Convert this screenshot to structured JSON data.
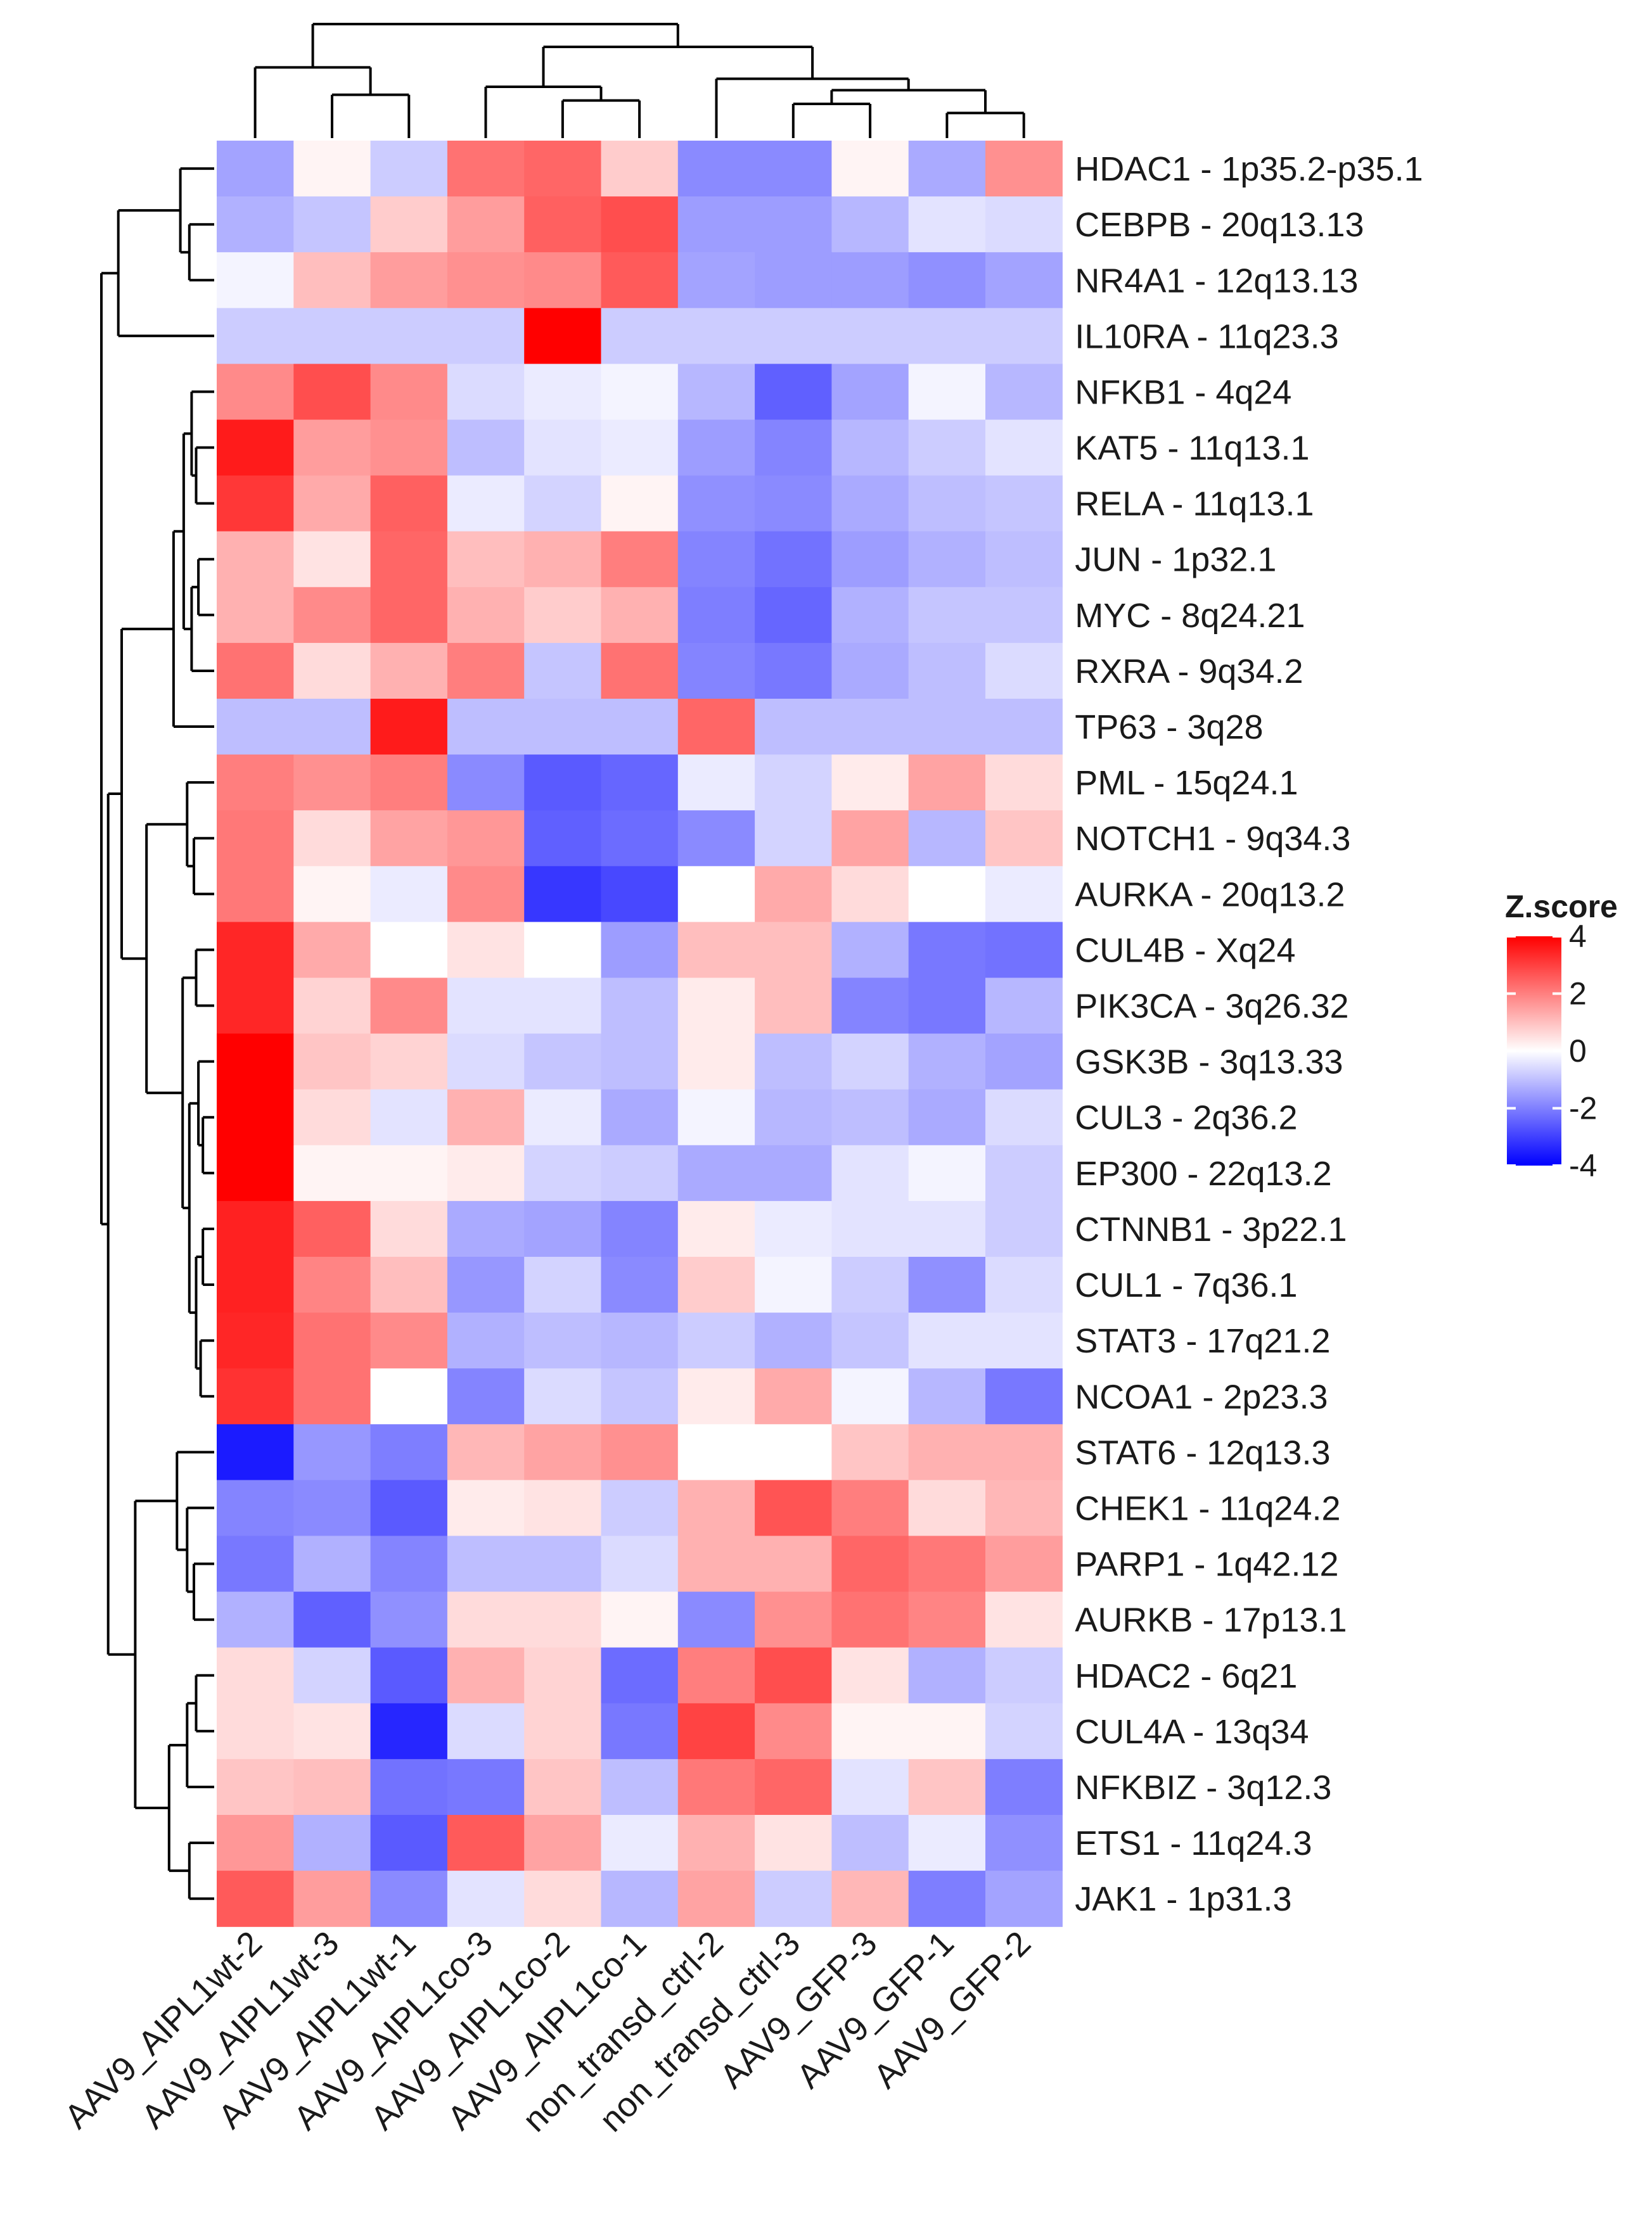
{
  "chart_data": {
    "type": "heatmap",
    "title": "",
    "legend": {
      "title": "Z.score",
      "ticks": [
        4,
        2,
        0,
        -2,
        -4
      ],
      "range": [
        -4,
        4
      ],
      "colors": {
        "low": "#0000ff",
        "mid": "#ffffff",
        "high": "#ff0000"
      },
      "placement": "right"
    },
    "columns": [
      "AAV9_AIPL1wt-2",
      "AAV9_AIPL1wt-3",
      "AAV9_AIPL1wt-1",
      "AAV9_AIPL1co-3",
      "AAV9_AIPL1co-2",
      "AAV9_AIPL1co-1",
      "non_transd_ctrl-2",
      "non_transd_ctrl-3",
      "AAV9_GFP-3",
      "AAV9_GFP-1",
      "AAV9_GFP-2"
    ],
    "rows": [
      "HDAC1 - 1p35.2-p35.1",
      "CEBPB - 20q13.13",
      "NR4A1 - 12q13.13",
      "IL10RA - 11q23.3",
      "NFKB1 - 4q24",
      "KAT5 - 11q13.1",
      "RELA - 11q13.1",
      "JUN - 1p32.1",
      "MYC - 8q24.21",
      "RXRA - 9q34.2",
      "TP63 - 3q28",
      "PML - 15q24.1",
      "NOTCH1 - 9q34.3",
      "AURKA - 20q13.2",
      "CUL4B - Xq24",
      "PIK3CA - 3q26.32",
      "GSK3B - 3q13.33",
      "CUL3 - 2q36.2",
      "EP300 - 22q13.2",
      "CTNNB1 - 3p22.1",
      "CUL1 - 7q36.1",
      "STAT3 - 17q21.2",
      "NCOA1 - 2p23.3",
      "STAT6 - 12q13.3",
      "CHEK1 - 11q24.2",
      "PARP1 - 1q42.12",
      "AURKB - 17p13.1",
      "HDAC2 - 6q21",
      "CUL4A - 13q34",
      "NFKBIZ - 3q12.3",
      "ETS1 - 11q24.3",
      "JAK1 - 1p31.3"
    ],
    "values": [
      [
        -1.2,
        0.1,
        -0.6,
        2.0,
        2.2,
        0.6,
        -1.6,
        -1.6,
        0.1,
        -1.1,
        1.5
      ],
      [
        -1.0,
        -0.7,
        0.6,
        1.3,
        2.3,
        2.6,
        -1.3,
        -1.3,
        -0.9,
        -0.3,
        -0.4
      ],
      [
        -0.1,
        0.8,
        1.3,
        1.5,
        1.6,
        2.4,
        -1.2,
        -1.3,
        -1.3,
        -1.5,
        -1.2
      ],
      [
        -0.6,
        -0.6,
        -0.6,
        -0.6,
        4.0,
        -0.6,
        -0.6,
        -0.6,
        -0.6,
        -0.6,
        -0.6
      ],
      [
        1.6,
        2.6,
        1.6,
        -0.4,
        -0.2,
        -0.1,
        -0.9,
        -2.3,
        -1.2,
        -0.1,
        -0.9
      ],
      [
        3.5,
        1.3,
        1.5,
        -0.8,
        -0.3,
        -0.2,
        -1.3,
        -1.7,
        -0.9,
        -0.6,
        -0.3
      ],
      [
        3.0,
        1.1,
        2.3,
        -0.2,
        -0.5,
        0.1,
        -1.5,
        -1.6,
        -1.1,
        -0.8,
        -0.7
      ],
      [
        1.0,
        0.3,
        2.2,
        0.8,
        1.0,
        1.8,
        -1.7,
        -2.0,
        -1.3,
        -1.0,
        -0.8
      ],
      [
        1.0,
        1.6,
        2.2,
        1.0,
        0.6,
        1.0,
        -1.8,
        -2.2,
        -1.0,
        -0.7,
        -0.7
      ],
      [
        2.0,
        0.4,
        1.0,
        1.8,
        -0.7,
        2.0,
        -1.7,
        -1.9,
        -1.1,
        -0.8,
        -0.4
      ],
      [
        -0.8,
        -0.8,
        3.5,
        -0.8,
        -0.8,
        -0.8,
        2.2,
        -0.8,
        -0.8,
        -0.8,
        -0.8
      ],
      [
        1.8,
        1.5,
        1.8,
        -1.6,
        -2.4,
        -2.2,
        -0.2,
        -0.5,
        0.2,
        1.2,
        0.4
      ],
      [
        1.9,
        0.4,
        1.2,
        1.4,
        -2.3,
        -2.1,
        -1.6,
        -0.5,
        1.2,
        -0.9,
        0.7
      ],
      [
        1.9,
        0.1,
        -0.2,
        1.6,
        -3.0,
        -2.7,
        0.0,
        1.1,
        0.4,
        0.0,
        -0.2
      ],
      [
        3.3,
        1.1,
        0.0,
        0.3,
        0.0,
        -1.3,
        0.8,
        0.8,
        -1.0,
        -1.9,
        -2.0
      ],
      [
        3.3,
        0.5,
        1.6,
        -0.3,
        -0.3,
        -0.8,
        0.2,
        0.8,
        -1.7,
        -1.9,
        -0.9
      ],
      [
        4.0,
        0.7,
        0.5,
        -0.4,
        -0.7,
        -0.8,
        0.2,
        -0.8,
        -0.5,
        -1.0,
        -1.2
      ],
      [
        4.0,
        0.4,
        -0.3,
        1.0,
        -0.2,
        -1.1,
        -0.1,
        -0.9,
        -0.8,
        -1.1,
        -0.4
      ],
      [
        4.0,
        0.1,
        0.1,
        0.2,
        -0.5,
        -0.6,
        -1.1,
        -1.1,
        -0.3,
        -0.1,
        -0.6
      ],
      [
        3.4,
        2.3,
        0.4,
        -1.1,
        -1.2,
        -1.7,
        0.2,
        -0.2,
        -0.3,
        -0.3,
        -0.6
      ],
      [
        3.4,
        1.7,
        0.8,
        -1.4,
        -0.5,
        -1.6,
        0.6,
        -0.1,
        -0.6,
        -1.5,
        -0.4
      ],
      [
        3.3,
        2.0,
        1.6,
        -1.0,
        -0.8,
        -0.9,
        -0.6,
        -1.0,
        -0.7,
        -0.3,
        -0.3
      ],
      [
        3.1,
        2.0,
        0.0,
        -1.7,
        -0.4,
        -0.7,
        0.2,
        1.1,
        -0.1,
        -0.9,
        -1.9
      ],
      [
        -3.5,
        -1.4,
        -1.8,
        0.9,
        1.2,
        1.5,
        0.0,
        0.0,
        0.7,
        1.0,
        1.0
      ],
      [
        -1.7,
        -1.6,
        -2.4,
        0.2,
        0.3,
        -0.6,
        1.0,
        2.5,
        1.8,
        0.4,
        0.9
      ],
      [
        -1.9,
        -1.0,
        -1.7,
        -0.8,
        -0.8,
        -0.4,
        1.0,
        1.0,
        2.2,
        1.9,
        1.3
      ],
      [
        -1.0,
        -2.3,
        -1.5,
        0.4,
        0.4,
        0.1,
        -1.6,
        1.5,
        2.0,
        1.7,
        0.3
      ],
      [
        0.4,
        -0.5,
        -2.4,
        1.0,
        0.5,
        -2.1,
        1.8,
        2.6,
        0.3,
        -1.0,
        -0.6
      ],
      [
        0.4,
        0.3,
        -3.3,
        -0.4,
        0.5,
        -1.9,
        2.8,
        1.6,
        0.1,
        0.1,
        -0.5
      ],
      [
        0.7,
        0.8,
        -2.0,
        -1.9,
        0.7,
        -0.8,
        1.9,
        2.2,
        -0.3,
        0.7,
        -1.8
      ],
      [
        1.4,
        -1.0,
        -2.4,
        2.4,
        1.2,
        -0.2,
        1.0,
        0.3,
        -0.8,
        -0.2,
        -1.5
      ],
      [
        2.4,
        1.3,
        -1.6,
        -0.3,
        0.4,
        -0.9,
        1.2,
        -0.6,
        0.9,
        -1.8,
        -1.2
      ]
    ]
  }
}
